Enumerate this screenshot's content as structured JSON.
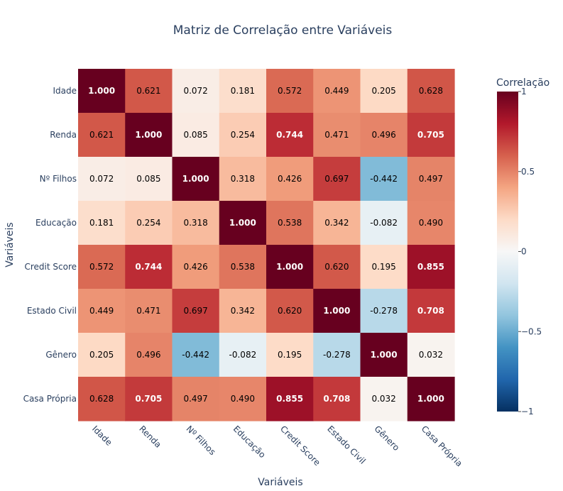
{
  "chart_data": {
    "type": "heatmap",
    "title": "Matriz de Correlação entre Variáveis",
    "xlabel": "Variáveis",
    "ylabel": "Variáveis",
    "categories": [
      "Idade",
      "Renda",
      "Nº Filhos",
      "Educação",
      "Credit Score",
      "Estado Civil",
      "Gênero",
      "Casa Própria"
    ],
    "values": [
      [
        1.0,
        0.621,
        0.072,
        0.181,
        0.572,
        0.449,
        0.205,
        0.628
      ],
      [
        0.621,
        1.0,
        0.085,
        0.254,
        0.744,
        0.471,
        0.496,
        0.705
      ],
      [
        0.072,
        0.085,
        1.0,
        0.318,
        0.426,
        0.697,
        -0.442,
        0.497
      ],
      [
        0.181,
        0.254,
        0.318,
        1.0,
        0.538,
        0.342,
        -0.082,
        0.49
      ],
      [
        0.572,
        0.744,
        0.426,
        0.538,
        1.0,
        0.62,
        0.195,
        0.855
      ],
      [
        0.449,
        0.471,
        0.697,
        0.342,
        0.62,
        1.0,
        -0.278,
        0.708
      ],
      [
        0.205,
        0.496,
        -0.442,
        -0.082,
        0.195,
        -0.278,
        1.0,
        0.032
      ],
      [
        0.628,
        0.705,
        0.497,
        0.49,
        0.855,
        0.708,
        0.032,
        1.0
      ]
    ],
    "value_format": "%.3f",
    "colorscale": "RdBu reversed",
    "zrange": [
      -1,
      1
    ],
    "colorbar": {
      "title": "Correlação",
      "ticks": [
        1,
        0.5,
        0,
        -0.5,
        -1
      ],
      "tick_labels": [
        "1",
        "0.5",
        "0",
        "−0.5",
        "−1"
      ]
    }
  }
}
